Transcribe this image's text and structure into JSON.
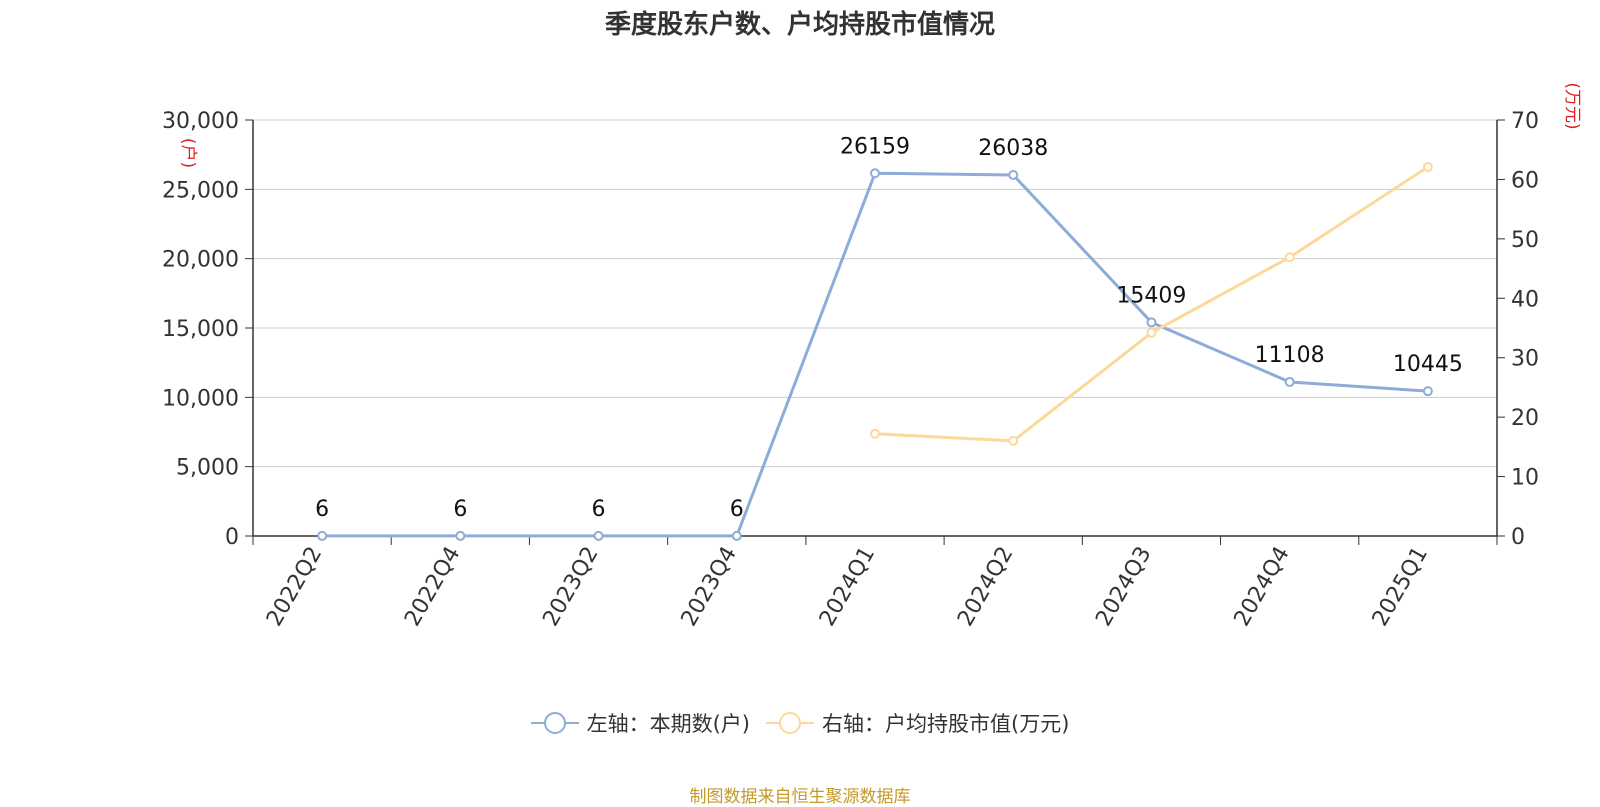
{
  "title": "季度股东户数、户均持股市值情况",
  "source": "制图数据来自恒生聚源数据库",
  "colors": {
    "holders": "#8eacd8",
    "avg_value": "#fdd89a",
    "unit_label": "#e02020"
  },
  "chart_data": {
    "type": "line",
    "title": "季度股东户数、户均持股市值情况",
    "categories": [
      "2022Q2",
      "2022Q4",
      "2023Q2",
      "2023Q4",
      "2024Q1",
      "2024Q2",
      "2024Q3",
      "2024Q4",
      "2025Q1"
    ],
    "left_axis": {
      "unit": "(户)",
      "range": [
        0,
        30000
      ],
      "ticks": [
        0,
        5000,
        10000,
        15000,
        20000,
        25000,
        30000
      ],
      "tick_labels": [
        "0",
        "5,000",
        "10,000",
        "15,000",
        "20,000",
        "25,000",
        "30,000"
      ]
    },
    "right_axis": {
      "unit": "(万元)",
      "range": [
        0,
        70
      ],
      "ticks": [
        0,
        10,
        20,
        30,
        40,
        50,
        60,
        70
      ],
      "tick_labels": [
        "0",
        "10",
        "20",
        "30",
        "40",
        "50",
        "60",
        "70"
      ]
    },
    "grid": true,
    "legend_position": "bottom-center",
    "series": [
      {
        "name": "左轴：本期数(户)",
        "axis": "left",
        "color": "#8eacd8",
        "values": [
          6,
          6,
          6,
          6,
          26159,
          26038,
          15409,
          11108,
          10445
        ],
        "data_labels": [
          "6",
          "6",
          "6",
          "6",
          "26159",
          "26038",
          "15409",
          "11108",
          "10445"
        ]
      },
      {
        "name": "右轴：户均持股市值(万元)",
        "axis": "right",
        "color": "#fdd89a",
        "values": [
          null,
          null,
          null,
          null,
          17.2,
          16.0,
          34.2,
          46.9,
          62.1
        ]
      }
    ]
  }
}
